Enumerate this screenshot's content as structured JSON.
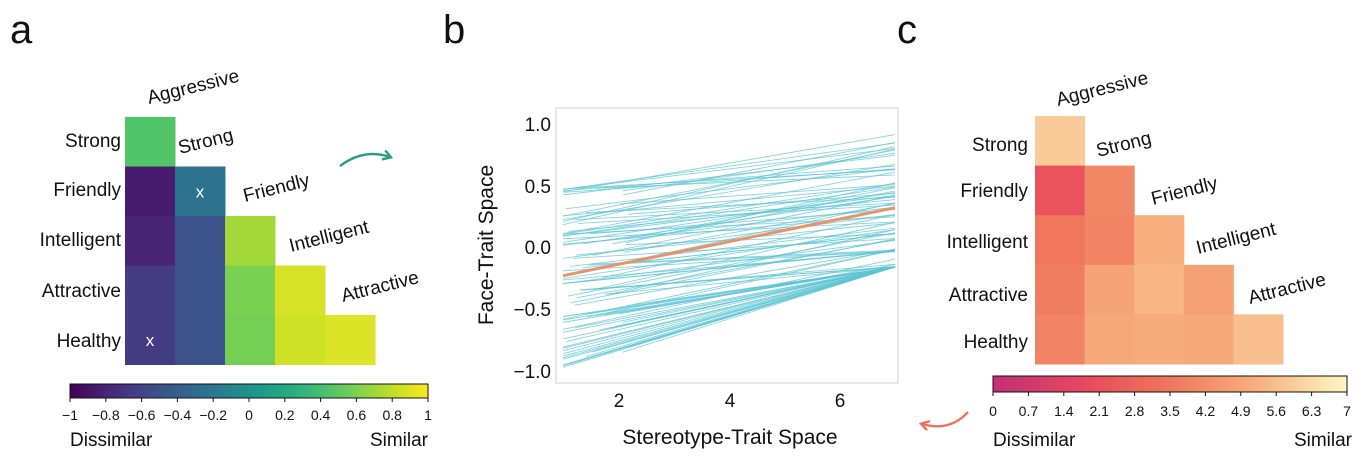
{
  "panels": {
    "a": {
      "letter": "a",
      "row_labels": [
        "Strong",
        "Friendly",
        "Intelligent",
        "Attractive",
        "Healthy"
      ],
      "diag_labels": [
        "Aggressive",
        "Strong",
        "Friendly",
        "Intelligent",
        "Attractive"
      ],
      "colorbar": {
        "ticks": [
          "−1",
          "−0.8",
          "−0.6",
          "−0.4",
          "−0.2",
          "0",
          "0.2",
          "0.4",
          "0.6",
          "0.8",
          "1"
        ],
        "low_label": "Dissimilar",
        "high_label": "Similar"
      }
    },
    "b": {
      "letter": "b",
      "xlabel": "Stereotype-Trait Space",
      "ylabel": "Face-Trait Space",
      "xticks": [
        "2",
        "4",
        "6"
      ],
      "yticks": [
        "1.0",
        "0.5",
        "0.0",
        "−0.5",
        "−1.0"
      ]
    },
    "c": {
      "letter": "c",
      "row_labels": [
        "Strong",
        "Friendly",
        "Intelligent",
        "Attractive",
        "Healthy"
      ],
      "diag_labels": [
        "Aggressive",
        "Strong",
        "Friendly",
        "Intelligent",
        "Attractive"
      ],
      "colorbar": {
        "ticks": [
          "0",
          "0.7",
          "1.4",
          "2.1",
          "2.8",
          "3.5",
          "4.2",
          "4.9",
          "5.6",
          "6.3",
          "7"
        ],
        "low_label": "Dissimilar",
        "high_label": "Similar"
      }
    }
  },
  "colors": {
    "arrow_a": "#2a9d7f",
    "arrow_c": "#f0705a",
    "fit_line": "#e8926a",
    "subject_lines": "#5ec4d3"
  },
  "chart_data": [
    {
      "type": "heatmap",
      "panel": "a",
      "rows": [
        "Strong",
        "Friendly",
        "Intelligent",
        "Attractive",
        "Healthy"
      ],
      "columns": [
        "Aggressive",
        "Strong",
        "Friendly",
        "Intelligent",
        "Attractive"
      ],
      "values": [
        [
          0.45,
          null,
          null,
          null,
          null
        ],
        [
          -0.85,
          -0.25,
          null,
          null,
          null
        ],
        [
          -0.8,
          -0.5,
          0.72,
          null,
          null
        ],
        [
          -0.65,
          -0.5,
          0.6,
          0.88,
          null
        ],
        [
          -0.65,
          -0.5,
          0.58,
          0.85,
          0.9
        ]
      ],
      "marked_cells": [
        [
          1,
          1
        ],
        [
          4,
          0
        ]
      ],
      "marker": "x",
      "vmin": -1,
      "vmax": 1,
      "colormap": "viridis"
    },
    {
      "type": "line",
      "panel": "b",
      "xlabel": "Stereotype-Trait Space",
      "ylabel": "Face-Trait Space",
      "xlim": [
        1,
        7
      ],
      "ylim": [
        -1.05,
        1.08
      ],
      "series": [
        {
          "style": "group-fit",
          "x": [
            1,
            7
          ],
          "y": [
            -0.22,
            0.33
          ]
        }
      ],
      "subject_line_count": 100,
      "subject_line_ranges": {
        "y_at_x1": [
          -1.05,
          0.55
        ],
        "y_at_x7": [
          -0.15,
          1.05
        ]
      }
    },
    {
      "type": "heatmap",
      "panel": "c",
      "rows": [
        "Strong",
        "Friendly",
        "Intelligent",
        "Attractive",
        "Healthy"
      ],
      "columns": [
        "Aggressive",
        "Strong",
        "Friendly",
        "Intelligent",
        "Attractive"
      ],
      "values": [
        [
          5.9,
          null,
          null,
          null,
          null
        ],
        [
          2.2,
          4.0,
          null,
          null,
          null
        ],
        [
          3.5,
          3.9,
          5.2,
          null,
          null
        ],
        [
          3.7,
          4.9,
          5.4,
          4.8,
          null
        ],
        [
          3.9,
          5.0,
          5.1,
          5.0,
          5.6
        ]
      ],
      "vmin": 0,
      "vmax": 7,
      "colormap": "magma"
    }
  ]
}
